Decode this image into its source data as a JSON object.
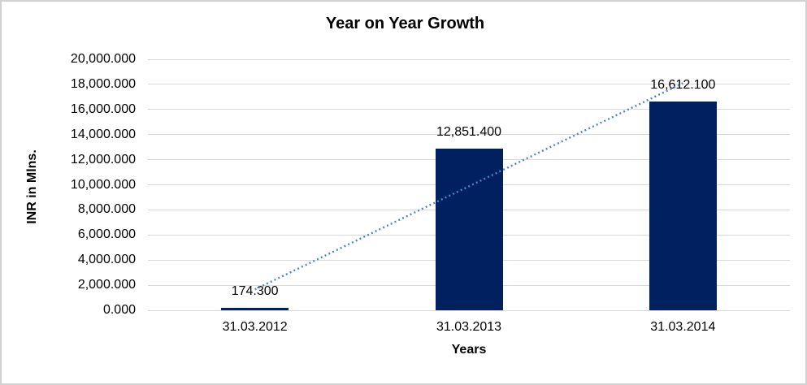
{
  "chart_data": {
    "type": "bar",
    "title": "Year on Year Growth",
    "xlabel": "Years",
    "ylabel": "INR in Mlns.",
    "categories": [
      "31.03.2012",
      "31.03.2013",
      "31.03.2014"
    ],
    "values": [
      174.3,
      12851.4,
      16612.1
    ],
    "value_labels": [
      "174.300",
      "12,851.400",
      "16,612.100"
    ],
    "ylim": [
      0,
      20000
    ],
    "ytick_step": 2000,
    "ytick_labels": [
      "0.000",
      "2,000.000",
      "4,000.000",
      "6,000.000",
      "8,000.000",
      "10,000.000",
      "12,000.000",
      "14,000.000",
      "16,000.000",
      "18,000.000",
      "20,000.000"
    ],
    "grid": true,
    "legend": "none",
    "bar_color": "#002060",
    "gridline_color": "#d9d9d9",
    "text_color": "#000000",
    "trendline": {
      "type": "linear",
      "style": "dotted",
      "color": "#4a86c8"
    }
  }
}
